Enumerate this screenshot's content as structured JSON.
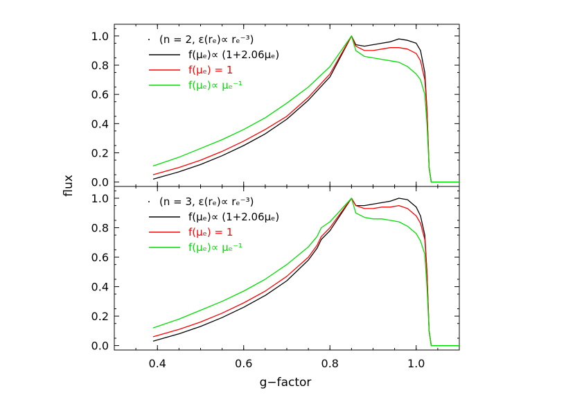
{
  "chart_data": {
    "type": "line",
    "xlabel": "g−factor",
    "ylabel": "flux",
    "xlim": [
      0.3,
      1.1
    ],
    "ylim": [
      -0.03,
      1.08
    ],
    "x_ticks": [
      "0.4",
      "0.6",
      "0.8",
      "1.0"
    ],
    "y_ticks": [
      "0.0",
      "0.2",
      "0.4",
      "0.6",
      "0.8",
      "1.0"
    ],
    "panels": [
      {
        "legend_header": "(n = 2, ε(rₑ)∝ rₑ⁻³)",
        "series": [
          {
            "name": "f(μₑ)∝ (1+2.06μₑ)",
            "color": "#000000",
            "x": [
              0.39,
              0.45,
              0.5,
              0.55,
              0.6,
              0.65,
              0.7,
              0.75,
              0.8,
              0.85,
              0.86,
              0.88,
              0.9,
              0.92,
              0.94,
              0.96,
              0.98,
              1.0,
              1.01,
              1.02,
              1.025,
              1.03,
              1.035,
              1.1
            ],
            "y": [
              0.02,
              0.07,
              0.12,
              0.18,
              0.25,
              0.33,
              0.43,
              0.56,
              0.72,
              1.0,
              0.94,
              0.93,
              0.94,
              0.95,
              0.96,
              0.98,
              0.97,
              0.95,
              0.9,
              0.75,
              0.5,
              0.1,
              0.0,
              0.0
            ]
          },
          {
            "name": "f(μₑ) = 1",
            "color": "#ff0000",
            "x": [
              0.39,
              0.45,
              0.5,
              0.55,
              0.6,
              0.65,
              0.7,
              0.75,
              0.8,
              0.85,
              0.86,
              0.88,
              0.9,
              0.92,
              0.94,
              0.96,
              0.98,
              1.0,
              1.01,
              1.02,
              1.025,
              1.03,
              1.035,
              1.1
            ],
            "y": [
              0.05,
              0.1,
              0.15,
              0.21,
              0.28,
              0.36,
              0.45,
              0.58,
              0.74,
              1.0,
              0.93,
              0.9,
              0.9,
              0.91,
              0.92,
              0.92,
              0.91,
              0.88,
              0.83,
              0.7,
              0.5,
              0.1,
              0.0,
              0.0
            ]
          },
          {
            "name": "f(μₑ)∝ μₑ⁻¹",
            "color": "#00dd00",
            "x": [
              0.39,
              0.45,
              0.5,
              0.55,
              0.6,
              0.65,
              0.7,
              0.75,
              0.8,
              0.85,
              0.86,
              0.88,
              0.9,
              0.92,
              0.94,
              0.96,
              0.98,
              1.0,
              1.01,
              1.02,
              1.025,
              1.03,
              1.035,
              1.1
            ],
            "y": [
              0.11,
              0.17,
              0.23,
              0.29,
              0.36,
              0.44,
              0.54,
              0.65,
              0.79,
              1.0,
              0.9,
              0.86,
              0.85,
              0.84,
              0.83,
              0.82,
              0.79,
              0.74,
              0.7,
              0.6,
              0.4,
              0.1,
              0.0,
              0.0
            ]
          }
        ]
      },
      {
        "legend_header": "(n = 3, ε(rₑ)∝ rₑ⁻³)",
        "series": [
          {
            "name": "f(μₑ)∝ (1+2.06μₑ)",
            "color": "#000000",
            "x": [
              0.39,
              0.45,
              0.5,
              0.55,
              0.6,
              0.65,
              0.7,
              0.75,
              0.77,
              0.78,
              0.8,
              0.85,
              0.86,
              0.88,
              0.9,
              0.92,
              0.94,
              0.96,
              0.98,
              1.0,
              1.01,
              1.02,
              1.025,
              1.03,
              1.035,
              1.1
            ],
            "y": [
              0.03,
              0.08,
              0.13,
              0.19,
              0.26,
              0.34,
              0.44,
              0.58,
              0.66,
              0.72,
              0.78,
              1.0,
              0.95,
              0.95,
              0.96,
              0.97,
              0.98,
              1.0,
              0.99,
              0.94,
              0.88,
              0.75,
              0.5,
              0.1,
              0.0,
              0.0
            ]
          },
          {
            "name": "f(μₑ) = 1",
            "color": "#ff0000",
            "x": [
              0.39,
              0.45,
              0.5,
              0.55,
              0.6,
              0.65,
              0.7,
              0.75,
              0.77,
              0.78,
              0.8,
              0.85,
              0.86,
              0.88,
              0.9,
              0.92,
              0.94,
              0.96,
              0.98,
              1.0,
              1.01,
              1.02,
              1.025,
              1.03,
              1.035,
              1.1
            ],
            "y": [
              0.06,
              0.11,
              0.16,
              0.22,
              0.29,
              0.37,
              0.47,
              0.6,
              0.68,
              0.74,
              0.8,
              1.0,
              0.95,
              0.93,
              0.93,
              0.94,
              0.94,
              0.95,
              0.93,
              0.88,
              0.83,
              0.72,
              0.5,
              0.1,
              0.0,
              0.0
            ]
          },
          {
            "name": "f(μₑ)∝ μₑ⁻¹",
            "color": "#00dd00",
            "x": [
              0.39,
              0.45,
              0.5,
              0.55,
              0.6,
              0.65,
              0.7,
              0.75,
              0.77,
              0.78,
              0.8,
              0.85,
              0.86,
              0.88,
              0.9,
              0.92,
              0.94,
              0.96,
              0.98,
              1.0,
              1.01,
              1.02,
              1.025,
              1.03,
              1.035,
              1.1
            ],
            "y": [
              0.12,
              0.18,
              0.24,
              0.3,
              0.37,
              0.45,
              0.55,
              0.67,
              0.74,
              0.8,
              0.84,
              1.0,
              0.9,
              0.87,
              0.86,
              0.86,
              0.85,
              0.84,
              0.81,
              0.76,
              0.71,
              0.62,
              0.4,
              0.1,
              0.0,
              0.0
            ]
          }
        ]
      }
    ]
  }
}
